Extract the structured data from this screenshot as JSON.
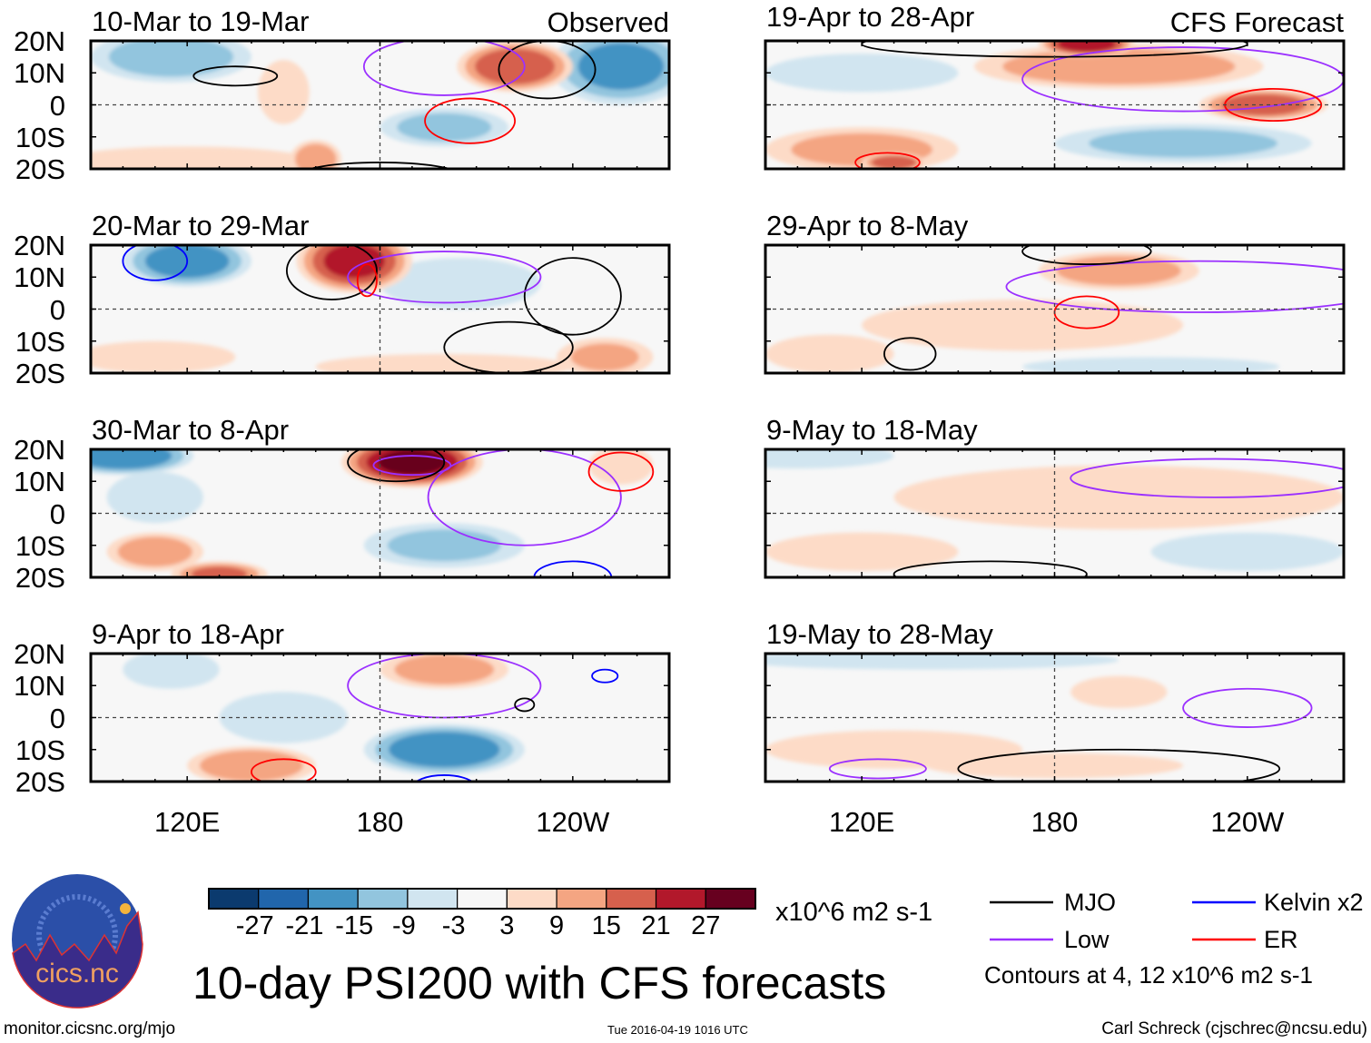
{
  "chart_data": {
    "type": "heatmap",
    "title": "10-day PSI200 with CFS forecasts",
    "units": "x10^6 m2 s-1",
    "lon_range": [
      90,
      270
    ],
    "lat_range": [
      -20,
      20
    ],
    "x_ticks": [
      "120E",
      "180",
      "120W"
    ],
    "x_tick_values": [
      120,
      180,
      240
    ],
    "y_ticks": [
      "20N",
      "10N",
      "0",
      "10S",
      "20S"
    ],
    "y_tick_values": [
      20,
      10,
      0,
      -10,
      -20
    ],
    "column_labels": [
      "Observed",
      "CFS Forecast"
    ],
    "colorbar": {
      "levels": [
        "-27",
        "-21",
        "-15",
        "-9",
        "-3",
        "3",
        "9",
        "15",
        "21",
        "27"
      ],
      "level_values": [
        -27,
        -21,
        -15,
        -9,
        -3,
        3,
        9,
        15,
        21,
        27
      ],
      "colors": [
        "#0b3a6e",
        "#2166ac",
        "#4393c3",
        "#92c5de",
        "#d1e5f0",
        "#f7f7f7",
        "#fddbc7",
        "#f4a582",
        "#d6604d",
        "#b2182b",
        "#67001f"
      ]
    },
    "legend": {
      "items": [
        {
          "label": "MJO",
          "color": "#000000"
        },
        {
          "label": "Kelvin x2",
          "color": "#0000ff"
        },
        {
          "label": "Low",
          "color": "#9b30ff"
        },
        {
          "label": "ER",
          "color": "#ff0000"
        }
      ],
      "note": "Contours at 4, 12 x10^6 m2 s-1"
    },
    "panels": [
      {
        "period": "10-Mar to 19-Mar",
        "column": "Observed",
        "anomalies": [
          [
            115,
            15,
            25,
            8,
            -12
          ],
          [
            255,
            12,
            22,
            12,
            -16
          ],
          [
            222,
            12,
            18,
            8,
            20
          ],
          [
            200,
            -7,
            20,
            6,
            -10
          ],
          [
            160,
            -17,
            8,
            6,
            14
          ],
          [
            120,
            -18,
            40,
            5,
            5
          ],
          [
            150,
            4,
            8,
            10,
            4
          ]
        ],
        "contours": [
          [
            "MJO",
            135,
            9,
            13,
            3
          ],
          [
            "ER",
            208,
            -5,
            14,
            7
          ],
          [
            "MJO",
            232,
            11,
            15,
            9
          ],
          [
            "Low",
            200,
            12,
            25,
            9
          ],
          [
            "MJO",
            180,
            -22,
            25,
            4
          ]
        ]
      },
      {
        "period": "20-Mar to 29-Mar",
        "column": "Observed",
        "anomalies": [
          [
            120,
            15,
            20,
            8,
            -18
          ],
          [
            172,
            15,
            18,
            10,
            22
          ],
          [
            205,
            8,
            25,
            8,
            -6
          ],
          [
            200,
            -18,
            40,
            4,
            6
          ],
          [
            250,
            -15,
            15,
            6,
            9
          ],
          [
            110,
            -15,
            25,
            5,
            5
          ]
        ],
        "contours": [
          [
            "Kelvin x2",
            110,
            15,
            10,
            6
          ],
          [
            "MJO",
            240,
            4,
            15,
            12
          ],
          [
            "MJO",
            220,
            -12,
            20,
            8
          ],
          [
            "MJO",
            165,
            12,
            14,
            9
          ],
          [
            "Low",
            200,
            10,
            30,
            8
          ],
          [
            "ER",
            176,
            9,
            3,
            5
          ]
        ]
      },
      {
        "period": "30-Mar to 8-Apr",
        "column": "Observed",
        "anomalies": [
          [
            100,
            18,
            22,
            6,
            -20
          ],
          [
            190,
            16,
            22,
            8,
            28
          ],
          [
            110,
            5,
            15,
            8,
            -8
          ],
          [
            200,
            -10,
            25,
            7,
            -9
          ],
          [
            110,
            -12,
            15,
            6,
            12
          ],
          [
            130,
            -19,
            15,
            4,
            15
          ],
          [
            255,
            15,
            10,
            6,
            8
          ]
        ],
        "contours": [
          [
            "Low",
            190,
            15,
            12,
            3
          ],
          [
            "MJO",
            185,
            16,
            15,
            6
          ],
          [
            "Low",
            225,
            5,
            30,
            15
          ],
          [
            "Kelvin x2",
            240,
            -20,
            12,
            5
          ],
          [
            "ER",
            255,
            13,
            10,
            6
          ]
        ]
      },
      {
        "period": "9-Apr to 18-Apr",
        "column": "Observed",
        "anomalies": [
          [
            115,
            15,
            15,
            6,
            -6
          ],
          [
            200,
            -10,
            25,
            8,
            -20
          ],
          [
            200,
            15,
            20,
            6,
            12
          ],
          [
            140,
            -15,
            20,
            6,
            14
          ],
          [
            150,
            0,
            20,
            8,
            -5
          ]
        ],
        "contours": [
          [
            "Low",
            200,
            10,
            30,
            10
          ],
          [
            "MJO",
            225,
            4,
            3,
            2
          ],
          [
            "Kelvin x2",
            250,
            13,
            4,
            2
          ],
          [
            "ER",
            150,
            -17,
            10,
            4
          ],
          [
            "Kelvin x2",
            200,
            -22,
            10,
            4
          ]
        ]
      },
      {
        "period": "19-Apr to 28-Apr",
        "column": "CFS Forecast",
        "anomalies": [
          [
            200,
            12,
            45,
            7,
            14
          ],
          [
            245,
            0,
            20,
            5,
            18
          ],
          [
            190,
            19,
            15,
            4,
            25
          ],
          [
            120,
            10,
            30,
            6,
            -6
          ],
          [
            220,
            -12,
            40,
            6,
            -10
          ],
          [
            120,
            -14,
            30,
            7,
            10
          ],
          [
            130,
            -18,
            10,
            3,
            20
          ]
        ],
        "contours": [
          [
            "Low",
            220,
            8,
            50,
            10
          ],
          [
            "ER",
            248,
            0,
            15,
            5
          ],
          [
            "ER",
            128,
            -18,
            10,
            3
          ],
          [
            "MJO",
            180,
            19,
            60,
            4
          ]
        ]
      },
      {
        "period": "29-Apr to 8-May",
        "column": "CFS Forecast",
        "anomalies": [
          [
            200,
            12,
            25,
            6,
            12
          ],
          [
            110,
            -14,
            20,
            6,
            8
          ],
          [
            210,
            -18,
            40,
            3,
            -6
          ],
          [
            170,
            -5,
            50,
            8,
            4
          ]
        ],
        "contours": [
          [
            "Low",
            225,
            7,
            60,
            8
          ],
          [
            "ER",
            190,
            -1,
            10,
            5
          ],
          [
            "MJO",
            135,
            -14,
            8,
            5
          ],
          [
            "MJO",
            190,
            18,
            20,
            4
          ]
        ]
      },
      {
        "period": "9-May to 18-May",
        "column": "CFS Forecast",
        "anomalies": [
          [
            200,
            5,
            70,
            10,
            5
          ],
          [
            120,
            -12,
            30,
            6,
            6
          ],
          [
            240,
            -12,
            30,
            6,
            -5
          ],
          [
            100,
            18,
            30,
            4,
            -4
          ]
        ],
        "contours": [
          [
            "Low",
            230,
            11,
            45,
            6
          ],
          [
            "MJO",
            160,
            -19,
            30,
            4
          ]
        ]
      },
      {
        "period": "19-May to 28-May",
        "column": "CFS Forecast",
        "anomalies": [
          [
            140,
            18,
            60,
            3,
            -7
          ],
          [
            130,
            -10,
            40,
            6,
            5
          ],
          [
            200,
            8,
            15,
            5,
            4
          ],
          [
            180,
            -15,
            40,
            4,
            4
          ]
        ],
        "contours": [
          [
            "Low",
            240,
            3,
            20,
            6
          ],
          [
            "MJO",
            200,
            -16,
            50,
            6
          ],
          [
            "Low",
            125,
            -16,
            15,
            3
          ]
        ]
      }
    ]
  },
  "footer": {
    "logo_text": "cics.nc",
    "logo_ring_text": "Cooperative Institute for Climate and Satellites",
    "url": "monitor.cicsnc.org/mjo",
    "timestamp": "Tue 2016-04-19 1016 UTC",
    "author": "Carl Schreck (cjschrec@ncsu.edu)"
  }
}
